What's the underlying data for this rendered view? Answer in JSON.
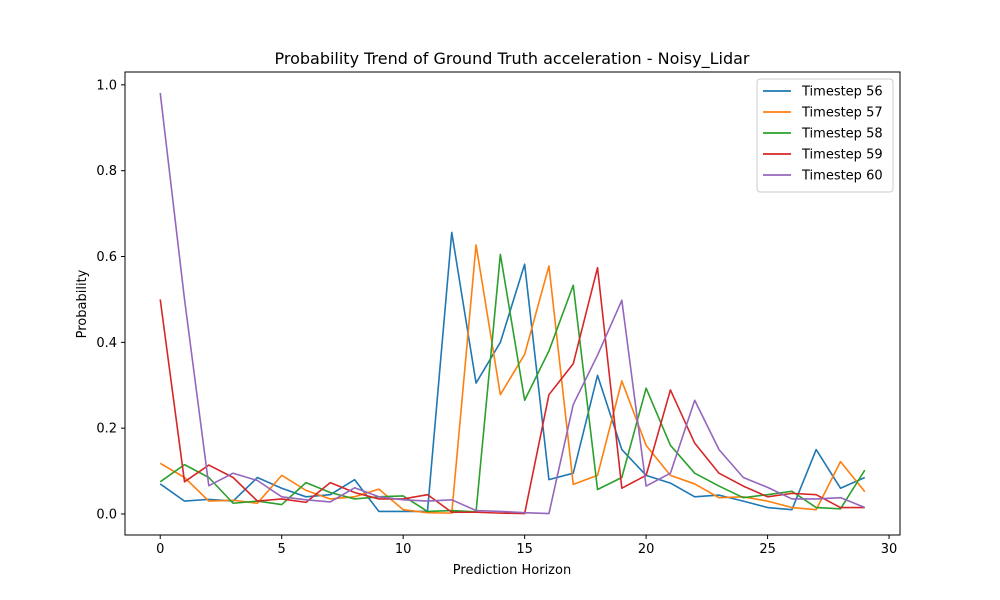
{
  "chart_data": {
    "type": "line",
    "title": "Probability Trend of Ground Truth acceleration - Noisy_Lidar",
    "xlabel": "Prediction Horizon",
    "ylabel": "Probability",
    "xlim": [
      -1.45,
      30.45
    ],
    "ylim": [
      -0.049,
      1.03
    ],
    "xticks": [
      0,
      5,
      10,
      15,
      20,
      25,
      30
    ],
    "yticks": [
      0.0,
      0.2,
      0.4,
      0.6,
      0.8,
      1.0
    ],
    "xtick_labels": [
      "0",
      "5",
      "10",
      "15",
      "20",
      "25",
      "30"
    ],
    "ytick_labels": [
      "0.0",
      "0.2",
      "0.4",
      "0.6",
      "0.8",
      "1.0"
    ],
    "grid": false,
    "legend_position": "top-right",
    "x": [
      0,
      1,
      2,
      3,
      4,
      5,
      6,
      7,
      8,
      9,
      10,
      11,
      12,
      13,
      14,
      15,
      16,
      17,
      18,
      19,
      20,
      21,
      22,
      23,
      24,
      25,
      26,
      27,
      28,
      29
    ],
    "series": [
      {
        "name": "Timestep 56",
        "color": "#1f77b4",
        "values": [
          0.07,
          0.03,
          0.034,
          0.03,
          0.085,
          0.06,
          0.04,
          0.045,
          0.08,
          0.006,
          0.006,
          0.006,
          0.656,
          0.305,
          0.4,
          0.582,
          0.08,
          0.095,
          0.323,
          0.15,
          0.09,
          0.072,
          0.04,
          0.044,
          0.03,
          0.015,
          0.01,
          0.15,
          0.06,
          0.085
        ]
      },
      {
        "name": "Timestep 57",
        "color": "#ff7f0e",
        "values": [
          0.118,
          0.085,
          0.03,
          0.032,
          0.025,
          0.09,
          0.055,
          0.035,
          0.04,
          0.058,
          0.01,
          0.003,
          0.002,
          0.627,
          0.278,
          0.372,
          0.578,
          0.069,
          0.09,
          0.31,
          0.16,
          0.09,
          0.07,
          0.038,
          0.04,
          0.03,
          0.015,
          0.01,
          0.122,
          0.052
        ]
      },
      {
        "name": "Timestep 58",
        "color": "#2ca02c",
        "values": [
          0.075,
          0.115,
          0.085,
          0.025,
          0.03,
          0.022,
          0.073,
          0.05,
          0.035,
          0.04,
          0.042,
          0.006,
          0.008,
          0.005,
          0.605,
          0.265,
          0.38,
          0.533,
          0.057,
          0.085,
          0.293,
          0.16,
          0.095,
          0.065,
          0.038,
          0.045,
          0.053,
          0.015,
          0.012,
          0.102
        ]
      },
      {
        "name": "Timestep 59",
        "color": "#d62728",
        "values": [
          0.5,
          0.075,
          0.114,
          0.085,
          0.03,
          0.035,
          0.027,
          0.073,
          0.05,
          0.035,
          0.035,
          0.045,
          0.004,
          0.004,
          0.002,
          0.001,
          0.278,
          0.35,
          0.574,
          0.06,
          0.09,
          0.289,
          0.165,
          0.095,
          0.065,
          0.04,
          0.048,
          0.045,
          0.015,
          0.015
        ]
      },
      {
        "name": "Timestep 60",
        "color": "#9467bd",
        "values": [
          0.981,
          0.5,
          0.066,
          0.095,
          0.078,
          0.04,
          0.033,
          0.028,
          0.061,
          0.04,
          0.033,
          0.03,
          0.033,
          0.008,
          0.006,
          0.003,
          0.001,
          0.255,
          0.37,
          0.498,
          0.065,
          0.095,
          0.265,
          0.15,
          0.085,
          0.062,
          0.035,
          0.035,
          0.038,
          0.015
        ]
      }
    ]
  }
}
